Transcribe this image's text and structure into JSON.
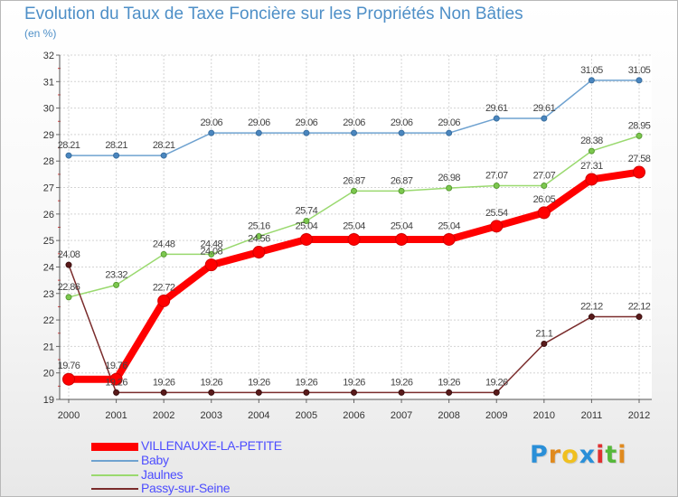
{
  "title": "Evolution du Taux de Taxe Foncière sur les Propriétés Non Bâties",
  "subtitle": "(en %)",
  "logo": {
    "text": "Proxiti",
    "letter_colors": [
      "#2a8fd8",
      "#e08a1e",
      "#f0c020",
      "#2a8fd8",
      "#e03030",
      "#56b83a",
      "#e08a1e"
    ]
  },
  "chart_data": {
    "type": "line",
    "x": [
      2000,
      2001,
      2002,
      2003,
      2004,
      2005,
      2006,
      2007,
      2008,
      2009,
      2010,
      2011,
      2012
    ],
    "ylim": [
      19,
      32
    ],
    "yticks": [
      19,
      20,
      21,
      22,
      23,
      24,
      25,
      26,
      27,
      28,
      29,
      30,
      31,
      32
    ],
    "grid": true,
    "legend_position": "bottom-left",
    "series": [
      {
        "name": "Baby",
        "color": "#6fa2d0",
        "values": [
          28.21,
          28.21,
          28.21,
          29.06,
          29.06,
          29.06,
          29.06,
          29.06,
          29.06,
          29.61,
          29.61,
          31.05,
          31.05
        ],
        "labels": [
          "28.21",
          "28.21",
          "28.21",
          "29.06",
          "29.06",
          "29.06",
          "29.06",
          "29.06",
          "29.06",
          "29.61",
          "29.61",
          "31.05",
          "31.05"
        ]
      },
      {
        "name": "Jaulnes",
        "color": "#9ad96f",
        "values": [
          22.86,
          23.32,
          24.48,
          24.48,
          25.16,
          25.74,
          26.87,
          26.87,
          26.98,
          27.07,
          27.07,
          28.38,
          28.95
        ],
        "labels": [
          "22.86",
          "23.32",
          "24.48",
          "24.48",
          "25.16",
          "25.74",
          "26.87",
          "26.87",
          "26.98",
          "27.07",
          "27.07",
          "28.38",
          "28.95"
        ]
      },
      {
        "name": "Passy-sur-Seine",
        "color": "#7a2c2c",
        "values": [
          24.08,
          19.26,
          19.26,
          19.26,
          19.26,
          19.26,
          19.26,
          19.26,
          19.26,
          19.26,
          21.1,
          22.12,
          22.12
        ],
        "labels": [
          "24.08",
          "19.26",
          "19.26",
          "19.26",
          "19.26",
          "19.26",
          "19.26",
          "19.26",
          "19.26",
          "19.26",
          "21.1",
          "22.12",
          "22.12"
        ]
      },
      {
        "name": "VILLENAUXE-LA-PETITE",
        "color": "#ff0000",
        "values": [
          19.76,
          19.76,
          22.72,
          24.08,
          24.56,
          25.04,
          25.04,
          25.04,
          25.04,
          25.54,
          26.05,
          27.31,
          27.58
        ],
        "labels": [
          "19.76",
          "19.76",
          "22.72",
          "24.08",
          "24.56",
          "25.04",
          "25.04",
          "25.04",
          "25.04",
          "25.54",
          "26.05",
          "27.31",
          "27.58"
        ]
      }
    ],
    "legend": [
      "VILLENAUXE-LA-PETITE",
      "Baby",
      "Jaulnes",
      "Passy-sur-Seine"
    ]
  }
}
